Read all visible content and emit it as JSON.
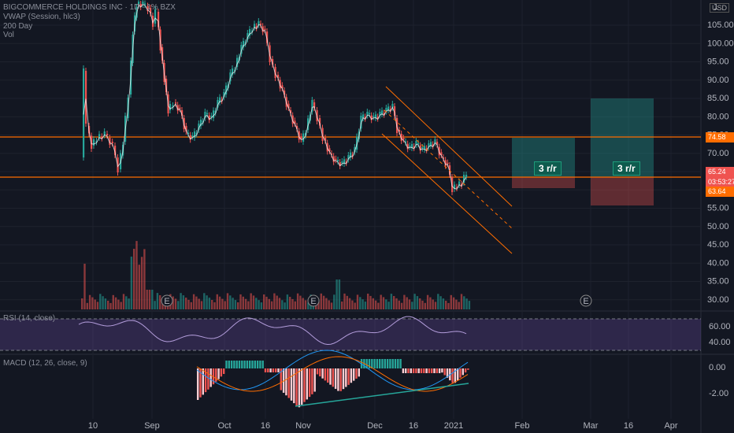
{
  "header": {
    "symbol": "BIGCOMMERCE HOLDINGS INC · 1D · 1% BZX",
    "vwap": "VWAP (Session, hlc3)",
    "ma": "200 Day",
    "vol": "Vol",
    "currency": "USD"
  },
  "price_axis": {
    "ticks": [
      "105.00",
      "100.00",
      "95.00",
      "90.00",
      "85.00",
      "80.00",
      "75.00",
      "70.00",
      "65.00",
      "60.00",
      "55.00",
      "50.00",
      "45.00",
      "40.00",
      "35.00",
      "30.00"
    ],
    "top_tick": "1"
  },
  "price_tags": [
    {
      "label": "74.58",
      "color": "#ff6d00"
    },
    {
      "label": "65.24",
      "color": "#ef5350"
    },
    {
      "label": "03:53:27",
      "color": "#ef5350"
    },
    {
      "label": "63.64",
      "color": "#ff6d00"
    }
  ],
  "rr_boxes": [
    {
      "label": "3 r/r"
    },
    {
      "label": "3 r/r"
    }
  ],
  "earnings_marker": "E",
  "rsi": {
    "title": "RSI (14, close)",
    "ticks": [
      "60.00",
      "40.00"
    ]
  },
  "macd": {
    "title": "MACD (12, 26, close, 9)",
    "ticks": [
      "0.00",
      "-2.00"
    ]
  },
  "time_axis": [
    "10",
    "Sep",
    "Oct",
    "16",
    "Nov",
    "Dec",
    "16",
    "2021",
    "Feb",
    "Mar",
    "16",
    "Apr"
  ],
  "colors": {
    "up": "#26a69a",
    "down": "#ef5350",
    "level": "#ff6d00",
    "channel": "#ff6d00",
    "rsi_band": "#7e57c2"
  }
}
